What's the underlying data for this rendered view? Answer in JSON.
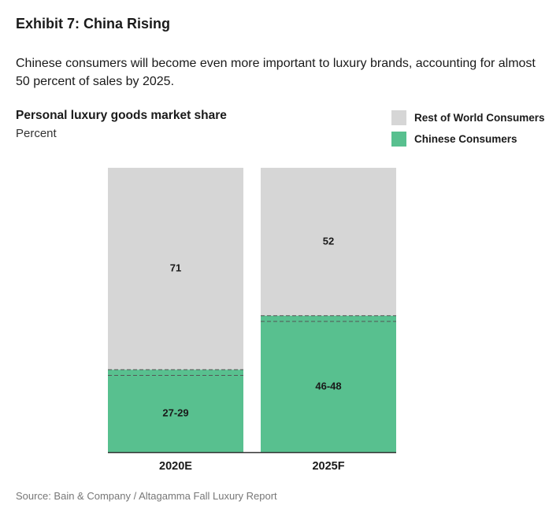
{
  "header": {
    "title": "Exhibit 7: China Rising",
    "subtitle": "Chinese consumers will become even more important to luxury brands, accounting for almost 50 percent of sales by 2025."
  },
  "footer": {
    "source": "Source: Bain & Company / Altagamma Fall Luxury Report"
  },
  "colors": {
    "rest_of_world": "#d6d6d6",
    "chinese": "#58c08f",
    "axis": "#333333"
  },
  "chart_data": {
    "type": "bar",
    "stacked": true,
    "title": "Personal luxury goods market share",
    "ylabel": "Percent",
    "categories": [
      "2020E",
      "2025F"
    ],
    "ylim": [
      0,
      100
    ],
    "series": [
      {
        "name": "Chinese Consumers",
        "color": "#58c08f",
        "values": [
          29,
          48
        ],
        "range_low": [
          27,
          46
        ],
        "labels": [
          "27-29",
          "46-48"
        ]
      },
      {
        "name": "Rest of World Consumers",
        "color": "#d6d6d6",
        "values": [
          71,
          52
        ],
        "labels": [
          "71",
          "52"
        ]
      }
    ],
    "legend_position": "top-right",
    "legend": [
      {
        "name": "Rest of World Consumers",
        "color": "#d6d6d6"
      },
      {
        "name": "Chinese Consumers",
        "color": "#58c08f"
      }
    ]
  }
}
